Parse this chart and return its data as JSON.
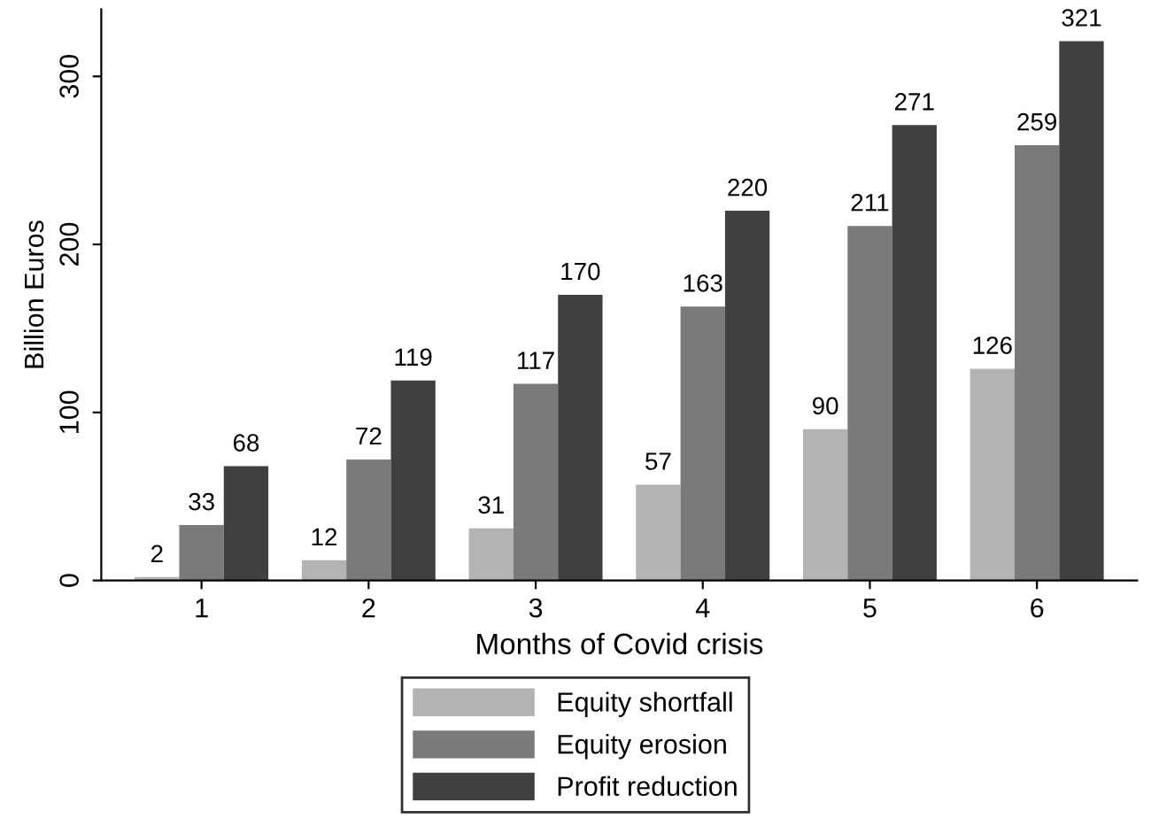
{
  "chart_data": {
    "type": "bar",
    "xlabel": "Months of Covid crisis",
    "ylabel": "Billion Euros",
    "categories": [
      "1",
      "2",
      "3",
      "4",
      "5",
      "6"
    ],
    "series": [
      {
        "name": "Equity shortfall",
        "color": "#b3b3b3",
        "values": [
          2,
          12,
          31,
          57,
          90,
          126
        ]
      },
      {
        "name": "Equity erosion",
        "color": "#7a7a7a",
        "values": [
          33,
          72,
          117,
          163,
          211,
          259
        ]
      },
      {
        "name": "Profit reduction",
        "color": "#404040",
        "values": [
          68,
          119,
          170,
          220,
          271,
          321
        ]
      }
    ],
    "ylim": [
      0,
      340
    ],
    "yticks": [
      0,
      100,
      200,
      300
    ],
    "grid": false,
    "legend": "bottom",
    "data_labels": true
  }
}
